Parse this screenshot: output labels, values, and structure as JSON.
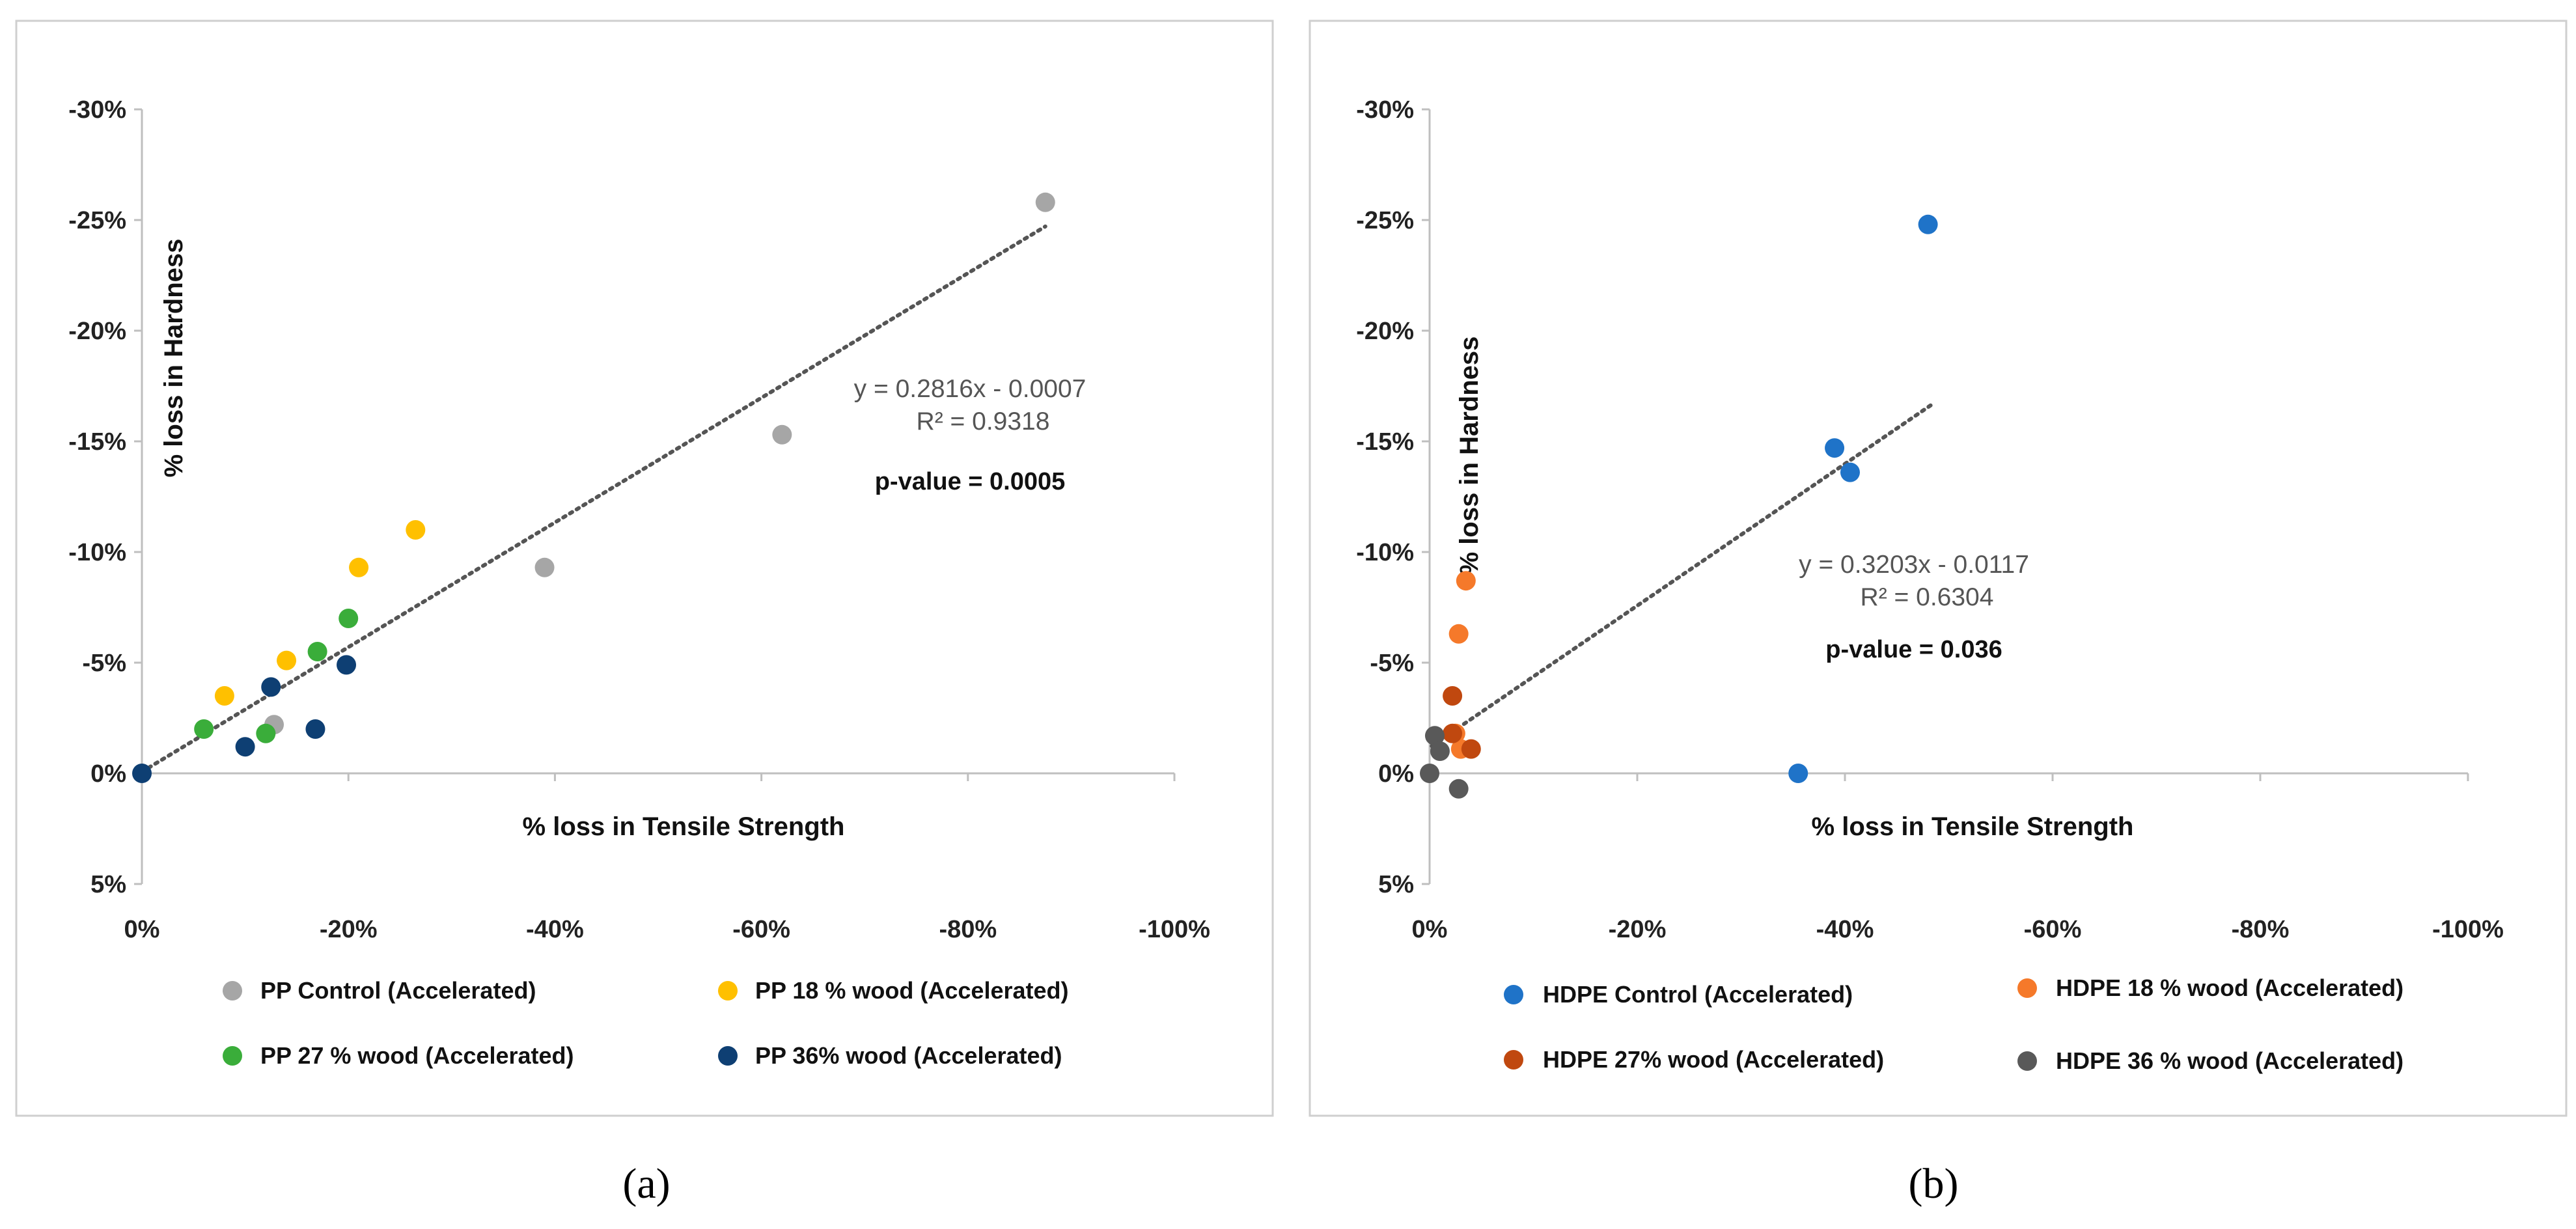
{
  "chart_data": [
    {
      "type": "scatter",
      "panel_label": "(a)",
      "xlabel": "% loss in Tensile Strength",
      "ylabel": "% loss in Hardness",
      "xlim": [
        0,
        -100
      ],
      "ylim": [
        5,
        -30
      ],
      "x_ticks": [
        "0%",
        "-20%",
        "-40%",
        "-60%",
        "-80%",
        "-100%"
      ],
      "y_ticks": [
        "-30%",
        "-25%",
        "-20%",
        "-15%",
        "-10%",
        "-5%",
        "0%",
        "5%"
      ],
      "trendline": {
        "slope": 0.2816,
        "intercept": -0.0007,
        "x_range": [
          0,
          -87.5
        ],
        "style": "dotted",
        "color": "#555555"
      },
      "annotations": {
        "equation": "y = 0.2816x - 0.0007",
        "r_squared": "R² = 0.9318",
        "p_value": "p-value = 0.0005"
      },
      "grid": false,
      "legend_position": "bottom",
      "series": [
        {
          "name": "PP Control (Accelerated)",
          "color": "#a6a6a6",
          "points": [
            {
              "x": -62,
              "y": -15.3
            },
            {
              "x": -39,
              "y": -9.3
            },
            {
              "x": -87.5,
              "y": -25.8
            },
            {
              "x": -12.8,
              "y": -2.2
            }
          ]
        },
        {
          "name": "PP 18 % wood (Accelerated)",
          "color": "#ffc000",
          "points": [
            {
              "x": -8,
              "y": -3.5
            },
            {
              "x": -14,
              "y": -5.1
            },
            {
              "x": -21,
              "y": -9.3
            },
            {
              "x": -26.5,
              "y": -11
            }
          ]
        },
        {
          "name": "PP 27 % wood (Accelerated)",
          "color": "#3aad3a",
          "points": [
            {
              "x": -6,
              "y": -2
            },
            {
              "x": -12,
              "y": -1.8
            },
            {
              "x": -17,
              "y": -5.5
            },
            {
              "x": -20,
              "y": -7
            }
          ]
        },
        {
          "name": "PP 36% wood (Accelerated)",
          "color": "#0e3f73",
          "points": [
            {
              "x": 0,
              "y": 0
            },
            {
              "x": -10,
              "y": -1.2
            },
            {
              "x": -12.5,
              "y": -3.9
            },
            {
              "x": -16.8,
              "y": -2
            },
            {
              "x": -19.8,
              "y": -4.9
            }
          ]
        }
      ]
    },
    {
      "type": "scatter",
      "panel_label": "(b)",
      "xlabel": "% loss in Tensile Strength",
      "ylabel": "% loss in Hardness",
      "xlim": [
        0,
        -100
      ],
      "ylim": [
        5,
        -30
      ],
      "x_ticks": [
        "0%",
        "-20%",
        "-40%",
        "-60%",
        "-80%",
        "-100%"
      ],
      "y_ticks": [
        "-30%",
        "-25%",
        "-20%",
        "-15%",
        "-10%",
        "-5%",
        "0%",
        "5%"
      ],
      "trendline": {
        "slope": 0.3203,
        "intercept": -0.0117,
        "x_range": [
          -0.2,
          -48.5
        ],
        "style": "dotted",
        "color": "#555555"
      },
      "annotations": {
        "equation": "y = 0.3203x - 0.0117",
        "r_squared": "R² = 0.6304",
        "p_value": "p-value = 0.036"
      },
      "grid": false,
      "legend_position": "bottom",
      "series": [
        {
          "name": "HDPE Control (Accelerated)",
          "color": "#1f73c8",
          "points": [
            {
              "x": -48,
              "y": -24.8
            },
            {
              "x": -39,
              "y": -14.7
            },
            {
              "x": -40.5,
              "y": -13.6
            },
            {
              "x": -35.5,
              "y": 0
            }
          ]
        },
        {
          "name": "HDPE 18 % wood (Accelerated)",
          "color": "#f5792a",
          "points": [
            {
              "x": -2.8,
              "y": -6.3
            },
            {
              "x": -3.5,
              "y": -8.7
            },
            {
              "x": -2.5,
              "y": -1.8
            },
            {
              "x": -3,
              "y": -1.1
            }
          ]
        },
        {
          "name": "HDPE 27% wood (Accelerated)",
          "color": "#c0480f",
          "points": [
            {
              "x": -2.2,
              "y": -3.5
            },
            {
              "x": -2.2,
              "y": -1.8
            },
            {
              "x": -4,
              "y": -1.1
            }
          ]
        },
        {
          "name": "HDPE 36 % wood (Accelerated)",
          "color": "#595959",
          "points": [
            {
              "x": 0,
              "y": 0
            },
            {
              "x": -0.5,
              "y": -1.7
            },
            {
              "x": -1,
              "y": -1
            },
            {
              "x": -2.8,
              "y": 0.7
            }
          ]
        }
      ]
    }
  ]
}
